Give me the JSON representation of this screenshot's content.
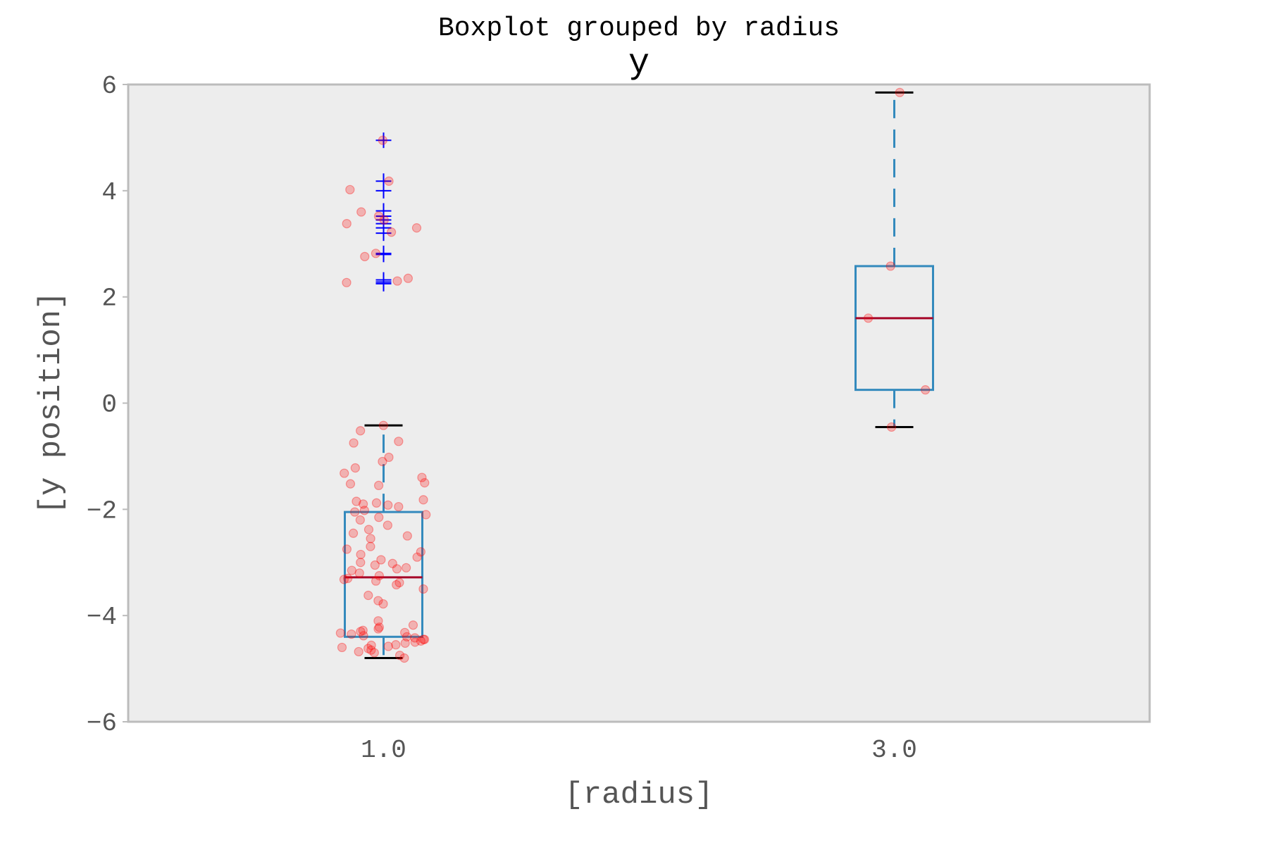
{
  "chart_data": {
    "type": "box",
    "title": "Boxplot grouped by radius",
    "subtitle": "y",
    "xlabel": "[radius]",
    "ylabel": "[y position]",
    "ylim": [
      -6,
      6
    ],
    "yticks": [
      6,
      4,
      2,
      0,
      -2,
      -4,
      -6
    ],
    "ytick_labels": [
      "6",
      "4",
      "2",
      "0",
      "−2",
      "−4",
      "−6"
    ],
    "categories": [
      "1.0",
      "3.0"
    ],
    "grid": false,
    "colors": {
      "plot_bg": "#ededed",
      "frame": "#bcbcbc",
      "box": "#348abd",
      "median": "#a60628",
      "cap": "#000000",
      "flier": "#0000ff",
      "points": "#ff0000"
    },
    "boxes": [
      {
        "category": "1.0",
        "q1": -4.4,
        "median": -3.28,
        "q3": -2.05,
        "whisker_low": -4.8,
        "whisker_high": -0.42,
        "fliers": [
          4.95,
          4.18,
          4.0,
          3.62,
          3.52,
          3.45,
          3.38,
          3.3,
          3.2,
          2.82,
          2.8,
          2.32,
          2.28,
          2.25
        ]
      },
      {
        "category": "3.0",
        "q1": 0.25,
        "median": 1.6,
        "q3": 2.58,
        "whisker_low": -0.45,
        "whisker_high": 5.85,
        "fliers": []
      }
    ],
    "points": [
      {
        "category": "1.0",
        "y": [
          4.95,
          4.18,
          4.02,
          3.6,
          3.52,
          3.45,
          3.38,
          3.3,
          3.22,
          2.82,
          2.76,
          2.35,
          2.3,
          2.27,
          -0.42,
          -0.52,
          -0.72,
          -0.75,
          -1.02,
          -1.1,
          -1.22,
          -1.32,
          -1.4,
          -1.5,
          -1.52,
          -1.55,
          -1.82,
          -1.85,
          -1.88,
          -1.92,
          -1.95,
          -2.02,
          -2.05,
          -2.1,
          -2.15,
          -2.2,
          -2.3,
          -2.38,
          -2.45,
          -2.5,
          -2.55,
          -2.7,
          -2.75,
          -2.8,
          -2.85,
          -2.9,
          -2.95,
          -3.0,
          -3.02,
          -3.05,
          -3.1,
          -3.12,
          -3.15,
          -3.2,
          -3.25,
          -3.3,
          -3.32,
          -3.35,
          -3.38,
          -3.42,
          -3.5,
          -3.62,
          -3.72,
          -3.78,
          -4.1,
          -4.18,
          -4.22,
          -4.25,
          -4.28,
          -4.3,
          -4.32,
          -4.35,
          -4.38,
          -4.4,
          -4.42,
          -4.45,
          -4.48,
          -4.5,
          -4.52,
          -4.55,
          -4.58,
          -4.6,
          -4.62,
          -4.65,
          -4.68,
          -4.7,
          -4.75,
          -4.8,
          -1.9,
          -4.45,
          -4.33,
          -4.56
        ]
      },
      {
        "category": "3.0",
        "y": [
          5.85,
          2.58,
          1.6,
          0.25,
          -0.45
        ]
      }
    ]
  }
}
